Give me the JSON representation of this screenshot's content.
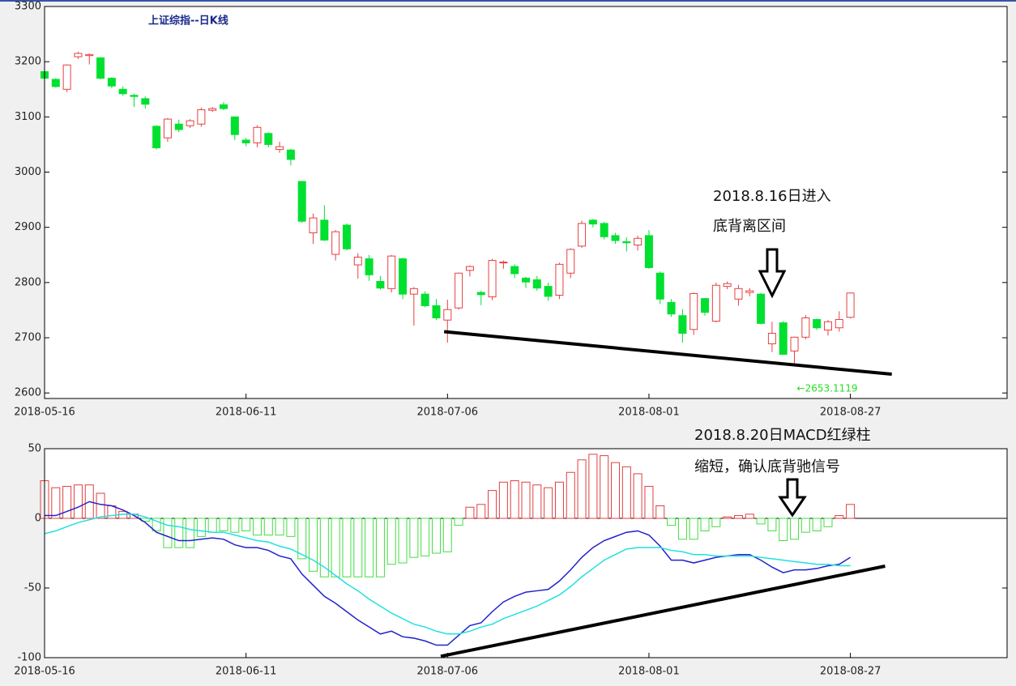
{
  "chart_data": [
    {
      "type": "candlestick",
      "title": "上证综指--日K线",
      "xlim": [
        0,
        86
      ],
      "xticks": [
        {
          "value": 0,
          "label": "2018-05-16"
        },
        {
          "value": 18,
          "label": "2018-06-11"
        },
        {
          "value": 36,
          "label": "2018-07-06"
        },
        {
          "value": 54,
          "label": "2018-08-01"
        },
        {
          "value": 72,
          "label": "2018-08-27"
        }
      ],
      "ylim": [
        2590,
        3300
      ],
      "yticks": [
        2600,
        2700,
        2800,
        2900,
        3000,
        3100,
        3200,
        3300
      ],
      "up_color": "#e84040",
      "down_color": "#00e030",
      "open": [
        3182,
        3168,
        3150,
        3209,
        3211,
        3207,
        3170,
        3150,
        3139,
        3133,
        3083,
        3062,
        3087,
        3084,
        3087,
        3112,
        3122,
        3100,
        3058,
        3053,
        3070,
        3041,
        3040,
        2983,
        2890,
        2913,
        2851,
        2904,
        2832,
        2843,
        2802,
        2789,
        2843,
        2779,
        2779,
        2758,
        2732,
        2754,
        2822,
        2782,
        2774,
        2836,
        2829,
        2808,
        2805,
        2793,
        2777,
        2817,
        2866,
        2913,
        2907,
        2885,
        2874,
        2868,
        2885,
        2817,
        2764,
        2740,
        2715,
        2771,
        2730,
        2793,
        2770,
        2782,
        2779,
        2689,
        2727,
        2676,
        2701,
        2733,
        2714,
        2718,
        2737
      ],
      "high": [
        3184,
        3170,
        3195,
        3218,
        3215,
        3208,
        3172,
        3155,
        3142,
        3137,
        3085,
        3098,
        3095,
        3096,
        3117,
        3118,
        3127,
        3101,
        3062,
        3085,
        3072,
        3055,
        3042,
        2984,
        2925,
        2940,
        2895,
        2907,
        2853,
        2850,
        2812,
        2850,
        2845,
        2792,
        2784,
        2770,
        2769,
        2818,
        2831,
        2785,
        2843,
        2840,
        2833,
        2810,
        2812,
        2800,
        2836,
        2862,
        2912,
        2915,
        2910,
        2890,
        2882,
        2885,
        2895,
        2820,
        2770,
        2752,
        2782,
        2772,
        2800,
        2802,
        2796,
        2790,
        2781,
        2729,
        2730,
        2702,
        2741,
        2735,
        2732,
        2748,
        2782
      ],
      "low": [
        3166,
        3153,
        3145,
        3205,
        3195,
        3168,
        3152,
        3138,
        3118,
        3115,
        3041,
        3055,
        3072,
        3080,
        3082,
        3109,
        3112,
        3058,
        3047,
        3045,
        3045,
        3035,
        3012,
        2908,
        2870,
        2875,
        2840,
        2858,
        2807,
        2803,
        2787,
        2782,
        2770,
        2722,
        2755,
        2732,
        2691,
        2751,
        2811,
        2759,
        2768,
        2825,
        2808,
        2790,
        2785,
        2767,
        2770,
        2808,
        2863,
        2900,
        2878,
        2870,
        2856,
        2858,
        2825,
        2761,
        2738,
        2691,
        2705,
        2740,
        2728,
        2788,
        2758,
        2775,
        2724,
        2674,
        2669,
        2653.1119,
        2697,
        2714,
        2704,
        2711,
        2735
      ],
      "close": [
        3170,
        3155,
        3194,
        3215,
        3213,
        3170,
        3156,
        3142,
        3137,
        3123,
        3044,
        3096,
        3077,
        3093,
        3113,
        3115,
        3115,
        3068,
        3053,
        3081,
        3050,
        3046,
        3023,
        2911,
        2917,
        2877,
        2892,
        2861,
        2846,
        2814,
        2790,
        2848,
        2779,
        2789,
        2758,
        2736,
        2751,
        2817,
        2829,
        2778,
        2840,
        2837,
        2816,
        2801,
        2790,
        2775,
        2833,
        2860,
        2907,
        2906,
        2883,
        2876,
        2872,
        2880,
        2827,
        2770,
        2743,
        2708,
        2780,
        2746,
        2795,
        2798,
        2789,
        2785,
        2726,
        2708,
        2670,
        2701,
        2736,
        2718,
        2729,
        2733,
        2781
      ],
      "min_label": "←2653.1119",
      "min_label_color": "#22dd22",
      "trendline": {
        "x": [
          35.7,
          75.7
        ],
        "y": [
          2711,
          2634
        ]
      },
      "note": [
        "2018.8.16日进入",
        "底背离区间"
      ]
    },
    {
      "type": "macd",
      "xlim": [
        0,
        86
      ],
      "xticks": [
        {
          "value": 0,
          "label": "2018-05-16"
        },
        {
          "value": 18,
          "label": "2018-06-11"
        },
        {
          "value": 36,
          "label": "2018-07-06"
        },
        {
          "value": 54,
          "label": "2018-08-01"
        },
        {
          "value": 72,
          "label": "2018-08-27"
        }
      ],
      "ylim": [
        -100,
        50
      ],
      "yticks": [
        -100,
        -50,
        0,
        50
      ],
      "up_color": "#e04040",
      "down_color": "#44dd44",
      "values": [
        27,
        22,
        23,
        24,
        24,
        18,
        9,
        5,
        3,
        -2,
        -9,
        -21,
        -21,
        -21,
        -13,
        -10,
        -9,
        -10,
        -9,
        -12,
        -12,
        -12,
        -13,
        -29,
        -38,
        -42,
        -42,
        -42,
        -42,
        -42,
        -42,
        -33,
        -32,
        -28,
        -27,
        -25,
        -24,
        -5,
        8,
        10,
        20,
        26,
        27,
        26,
        24,
        22,
        26,
        33,
        42,
        46,
        45,
        40,
        37,
        32,
        23,
        9,
        -5,
        -15,
        -15,
        -9,
        -6,
        1,
        2,
        3,
        -4,
        -9,
        -16,
        -15,
        -10,
        -9,
        -6,
        2,
        10
      ],
      "series": [
        {
          "color": "#2222cc",
          "values": [
            2,
            2,
            5,
            8,
            12,
            10,
            9,
            6,
            2,
            -3,
            -10,
            -13,
            -16,
            -16,
            -15,
            -14,
            -15,
            -19,
            -21,
            -21,
            -23,
            -27,
            -29,
            -40,
            -48,
            -56,
            -61,
            -67,
            -73,
            -78,
            -83,
            -81,
            -85,
            -86,
            -88,
            -91,
            -91,
            -84,
            -77,
            -75,
            -67,
            -60,
            -56,
            -53,
            -52,
            -51,
            -45,
            -37,
            -28,
            -21,
            -16,
            -13,
            -10,
            -9,
            -12,
            -20,
            -30,
            -30,
            -32,
            -30,
            -28,
            -27,
            -26,
            -26,
            -30,
            -35,
            -39,
            -37,
            -37,
            -36,
            -34,
            -33,
            -28
          ]
        },
        {
          "color": "#22e0e0",
          "values": [
            -11,
            -9,
            -6,
            -3,
            -1,
            1,
            2,
            3,
            3,
            1,
            -2,
            -5,
            -6,
            -8,
            -9,
            -10,
            -10,
            -12,
            -14,
            -16,
            -17,
            -20,
            -22,
            -26,
            -30,
            -35,
            -41,
            -47,
            -52,
            -58,
            -63,
            -68,
            -72,
            -76,
            -78,
            -81,
            -83,
            -83,
            -81,
            -78,
            -76,
            -72,
            -69,
            -66,
            -63,
            -59,
            -55,
            -49,
            -42,
            -36,
            -30,
            -26,
            -22,
            -21,
            -21,
            -21,
            -23,
            -24,
            -26,
            -26,
            -27,
            -27,
            -27,
            -27,
            -28,
            -29,
            -30,
            -31,
            -32,
            -33,
            -33,
            -34,
            -34
          ]
        }
      ],
      "trendline": {
        "x": [
          35.4,
          75.1
        ],
        "y": [
          -99,
          -34.3
        ]
      },
      "note": [
        "2018.8.20日MACD红绿柱",
        "缩短，确认底背驰信号"
      ]
    }
  ]
}
